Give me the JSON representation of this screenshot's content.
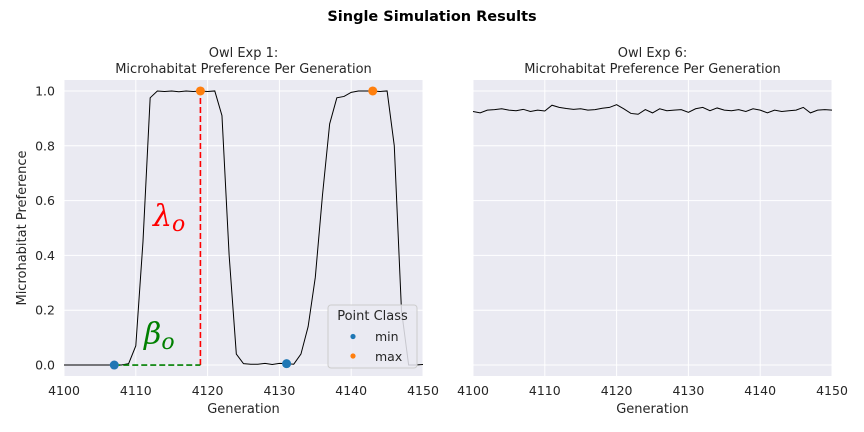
{
  "suptitle": "Single Simulation Results",
  "colors": {
    "plot_bg": "#EAEAF2",
    "grid": "#ffffff",
    "line": "#000000",
    "min": "#1f77b4",
    "max": "#ff7f0e",
    "lambda": "#ff0000",
    "beta": "#008000"
  },
  "chart_data": [
    {
      "type": "line",
      "title_line1": "Owl Exp 1:",
      "title_line2": "Microhabitat Preference Per Generation",
      "xlabel": "Generation",
      "ylabel": "Microhabitat Preference",
      "xlim": [
        4100,
        4150
      ],
      "ylim": [
        -0.04,
        1.04
      ],
      "xticks": [
        "4100",
        "4110",
        "4120",
        "4130",
        "4140",
        "4150"
      ],
      "yticks": [
        "0.0",
        "0.2",
        "0.4",
        "0.6",
        "0.8",
        "1.0"
      ],
      "grid": true,
      "series": [
        {
          "x": [
            4100,
            4101,
            4102,
            4103,
            4104,
            4105,
            4106,
            4107,
            4108,
            4109,
            4110,
            4111,
            4112,
            4113,
            4114,
            4115,
            4116,
            4117,
            4118,
            4119,
            4120,
            4121,
            4122,
            4123,
            4124,
            4125,
            4126,
            4127,
            4128,
            4129,
            4130,
            4131,
            4132,
            4133,
            4134,
            4135,
            4136,
            4137,
            4138,
            4139,
            4140,
            4141,
            4142,
            4143,
            4144,
            4145,
            4146,
            4147,
            4148,
            4149,
            4150
          ],
          "y": [
            0.0,
            0.0,
            0.0,
            0.0,
            0.0,
            0.0,
            0.0,
            0.0,
            0.0,
            0.005,
            0.07,
            0.45,
            0.975,
            1.0,
            0.998,
            1.0,
            0.997,
            1.0,
            0.998,
            1.0,
            0.998,
            1.0,
            0.91,
            0.4,
            0.04,
            0.005,
            0.003,
            0.003,
            0.006,
            0.002,
            0.006,
            0.005,
            0.003,
            0.04,
            0.14,
            0.32,
            0.62,
            0.88,
            0.975,
            0.98,
            0.995,
            1.0,
            1.0,
            1.0,
            0.998,
            1.0,
            0.8,
            0.2,
            0.0,
            0.0,
            0.002
          ]
        }
      ],
      "points": [
        {
          "x": 4107,
          "y": 0.0,
          "class": "min"
        },
        {
          "x": 4131,
          "y": 0.005,
          "class": "min"
        },
        {
          "x": 4119,
          "y": 1.0,
          "class": "max"
        },
        {
          "x": 4143,
          "y": 1.0,
          "class": "max"
        }
      ],
      "annotations": [
        {
          "label": "λo",
          "base": "λ",
          "sub": "o",
          "x": 4113,
          "y": 0.52,
          "color": "#ff0000"
        },
        {
          "label": "βo",
          "base": "β",
          "sub": "o",
          "x": 4112,
          "y": 0.04,
          "color": "#008000"
        }
      ],
      "vline": {
        "x": 4119,
        "y0": 0.0,
        "y1": 1.0,
        "color": "#ff0000"
      },
      "hline": {
        "y": 0.0,
        "x0": 4107,
        "x1": 4119,
        "color": "#008000"
      },
      "legend": {
        "title": "Point Class",
        "placement": "lower-right",
        "entries": [
          {
            "label": "min",
            "color": "#1f77b4"
          },
          {
            "label": "max",
            "color": "#ff7f0e"
          }
        ]
      }
    },
    {
      "type": "line",
      "title_line1": "Owl Exp 6:",
      "title_line2": "Microhabitat Preference Per Generation",
      "xlabel": "Generation",
      "xlim": [
        4100,
        4150
      ],
      "ylim": [
        -0.04,
        1.04
      ],
      "xticks": [
        "4100",
        "4110",
        "4120",
        "4130",
        "4140",
        "4150"
      ],
      "grid": true,
      "series": [
        {
          "x": [
            4100,
            4101,
            4102,
            4103,
            4104,
            4105,
            4106,
            4107,
            4108,
            4109,
            4110,
            4111,
            4112,
            4113,
            4114,
            4115,
            4116,
            4117,
            4118,
            4119,
            4120,
            4121,
            4122,
            4123,
            4124,
            4125,
            4126,
            4127,
            4128,
            4129,
            4130,
            4131,
            4132,
            4133,
            4134,
            4135,
            4136,
            4137,
            4138,
            4139,
            4140,
            4141,
            4142,
            4143,
            4144,
            4145,
            4146,
            4147,
            4148,
            4149,
            4150
          ],
          "y": [
            0.925,
            0.92,
            0.93,
            0.932,
            0.935,
            0.93,
            0.928,
            0.933,
            0.925,
            0.93,
            0.927,
            0.948,
            0.94,
            0.936,
            0.933,
            0.935,
            0.93,
            0.932,
            0.937,
            0.94,
            0.95,
            0.935,
            0.918,
            0.915,
            0.932,
            0.92,
            0.935,
            0.928,
            0.93,
            0.932,
            0.922,
            0.935,
            0.94,
            0.928,
            0.938,
            0.93,
            0.928,
            0.932,
            0.925,
            0.935,
            0.93,
            0.92,
            0.93,
            0.925,
            0.928,
            0.93,
            0.94,
            0.92,
            0.93,
            0.932,
            0.93
          ]
        }
      ]
    }
  ]
}
